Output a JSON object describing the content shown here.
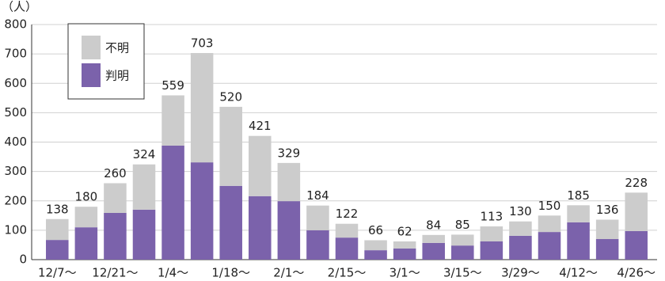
{
  "chart_data": {
    "type": "stacked-bar",
    "y_label": "（人）",
    "categories": [
      "12/7〜",
      null,
      "12/21〜",
      null,
      "1/4〜",
      null,
      "1/18〜",
      null,
      "2/1〜",
      null,
      "2/15〜",
      null,
      "3/1〜",
      null,
      "3/15〜",
      null,
      "3/29〜",
      null,
      "4/12〜",
      null,
      "4/26〜"
    ],
    "series": [
      {
        "name": "判明",
        "color": "#7b62ab",
        "values": [
          67,
          110,
          159,
          170,
          388,
          331,
          251,
          216,
          199,
          100,
          75,
          32,
          38,
          57,
          48,
          62,
          81,
          94,
          127,
          70,
          97
        ]
      },
      {
        "name": "不明",
        "color": "#cccccc",
        "values": [
          71,
          70,
          101,
          154,
          171,
          372,
          269,
          205,
          130,
          84,
          47,
          34,
          24,
          27,
          37,
          51,
          49,
          56,
          58,
          66,
          131
        ]
      }
    ],
    "totals": [
      138,
      180,
      260,
      324,
      559,
      703,
      520,
      421,
      329,
      184,
      122,
      66,
      62,
      84,
      85,
      113,
      130,
      150,
      185,
      136,
      228
    ],
    "ylim": [
      0,
      800
    ],
    "yticks": [
      0,
      100,
      200,
      300,
      400,
      500,
      600,
      700,
      800
    ],
    "grid": true
  }
}
